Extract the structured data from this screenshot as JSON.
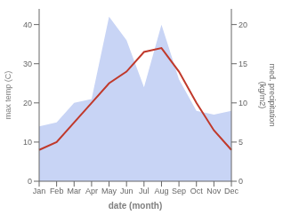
{
  "chart_data": {
    "type": "line",
    "categories": [
      "Jan",
      "Feb",
      "Mar",
      "Apr",
      "May",
      "Jun",
      "Jul",
      "Aug",
      "Sep",
      "Oct",
      "Nov",
      "Dec"
    ],
    "series": [
      {
        "type": "area",
        "axis": "y2",
        "color": "#c8d4f5",
        "values": [
          7,
          7.5,
          10,
          10.5,
          21,
          18,
          12,
          20,
          13,
          9,
          8.5,
          9
        ]
      },
      {
        "type": "line",
        "color": "#c0392b",
        "values": [
          8,
          10,
          15,
          20,
          25,
          28,
          33,
          34,
          28,
          20,
          13,
          8
        ]
      }
    ],
    "xlabel": "date (month)",
    "ylabel": "max temp (C)",
    "y2label": "med. precipitation\n(kg/m2)",
    "ylim": [
      0,
      44
    ],
    "yticks": [
      0,
      10,
      20,
      30,
      40
    ],
    "y2lim": [
      0,
      22
    ],
    "y2ticks": [
      0,
      5,
      10,
      15,
      20
    ],
    "grid": false
  }
}
